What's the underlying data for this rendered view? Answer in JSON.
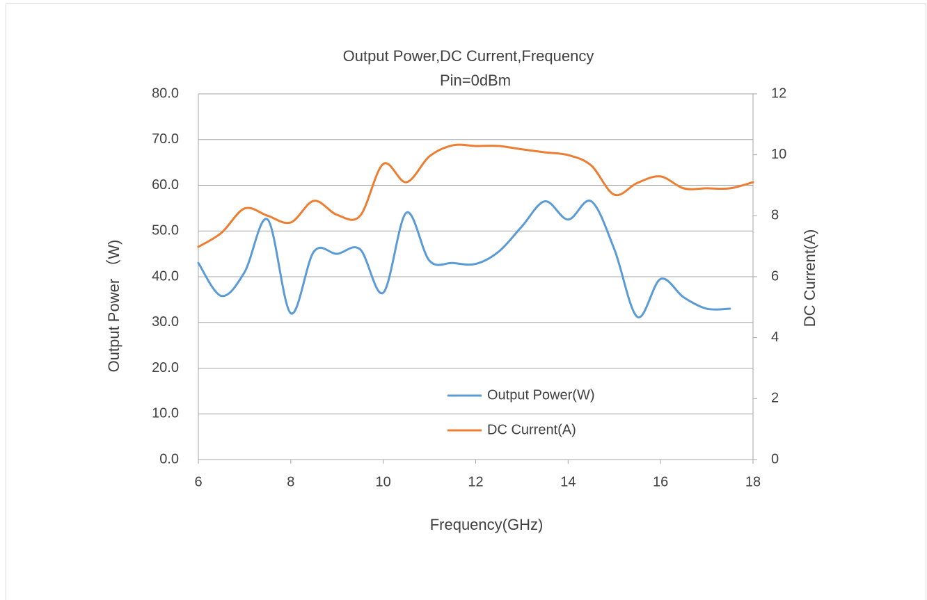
{
  "chart_data": {
    "type": "line",
    "title": "Output Power,DC Current,Frequency",
    "subtitle": "Pin=0dBm",
    "x_label": "Frequency(GHz)",
    "y_label": "Output Power （W)",
    "y2_label": "DC Current(A)",
    "x": [
      6,
      6.5,
      7,
      7.5,
      8,
      8.5,
      9,
      9.5,
      10,
      10.5,
      11,
      11.5,
      12,
      12.5,
      13,
      13.5,
      14,
      14.5,
      15,
      15.5,
      16,
      16.5,
      17,
      17.5,
      18
    ],
    "series": [
      {
        "name": "Output Power(W)",
        "color": "#5b9bd5",
        "values": [
          43,
          35.8,
          41,
          52.5,
          32,
          45.5,
          45,
          46,
          36.5,
          54,
          43.5,
          43,
          42.8,
          45.5,
          51,
          56.5,
          52.5,
          56.5,
          46,
          31.2,
          39.5,
          35.5,
          33,
          33,
          null
        ]
      },
      {
        "name": "DC Current(A)",
        "color": "#ed7d31",
        "axis": "y2",
        "values": [
          6.98,
          7.44,
          8.24,
          8.0,
          7.78,
          8.49,
          8.03,
          8.0,
          9.7,
          9.1,
          9.95,
          10.31,
          10.29,
          10.29,
          10.18,
          10.08,
          9.99,
          9.65,
          8.69,
          9.08,
          9.29,
          8.9,
          8.9,
          8.9,
          9.1
        ]
      }
    ],
    "xlim": [
      6,
      18
    ],
    "xticks": [
      6,
      8,
      10,
      12,
      14,
      16,
      18
    ],
    "ylim": [
      0,
      80
    ],
    "yticks": [
      {
        "value": 0,
        "label": "0.0"
      },
      {
        "value": 10,
        "label": "10.0"
      },
      {
        "value": 20,
        "label": "20.0"
      },
      {
        "value": 30,
        "label": "30.0"
      },
      {
        "value": 40,
        "label": "40.0"
      },
      {
        "value": 50,
        "label": "50.0"
      },
      {
        "value": 60,
        "label": "60.0"
      },
      {
        "value": 70,
        "label": "70.0"
      },
      {
        "value": 80,
        "label": "80.0"
      }
    ],
    "y2lim": [
      0,
      12
    ],
    "y2ticks": [
      0,
      2,
      4,
      6,
      8,
      10,
      12
    ],
    "grid": true
  }
}
